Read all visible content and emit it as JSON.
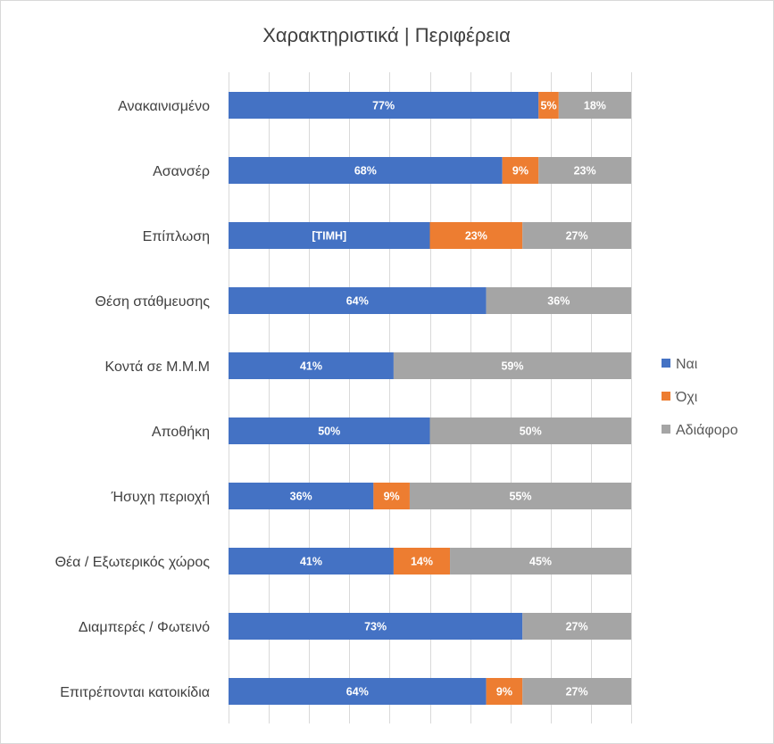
{
  "chart_data": {
    "type": "bar",
    "orientation": "horizontal",
    "stacked": "percent",
    "title": "Χαρακτηριστικά  |  Περιφέρεια",
    "xlabel": "",
    "ylabel": "",
    "xlim": [
      0,
      100
    ],
    "grid": true,
    "legend_position": "right",
    "categories": [
      "Ανακαινισμένο",
      "Ασανσέρ",
      "Επίπλωση",
      "Θέση στάθμευσης",
      "Κοντά σε Μ.Μ.Μ",
      "Αποθήκη",
      "Ήσυχη περιοχή",
      "Θέα / Εξωτερικός χώρος",
      "Διαμπερές / Φωτεινό",
      "Επιτρέπονται κατοικίδια"
    ],
    "series": [
      {
        "name": "Ναι",
        "color": "#4472c4",
        "values": [
          77,
          68,
          50,
          64,
          41,
          50,
          36,
          41,
          73,
          64
        ],
        "labels": [
          "77%",
          "68%",
          "[ΤΙΜΗ]",
          "64%",
          "41%",
          "50%",
          "36%",
          "41%",
          "73%",
          "64%"
        ]
      },
      {
        "name": "Όχι",
        "color": "#ed7d31",
        "values": [
          5,
          9,
          23,
          0,
          0,
          0,
          9,
          14,
          0,
          9
        ],
        "labels": [
          "5%",
          "9%",
          "23%",
          "",
          "",
          "",
          "9%",
          "14%",
          "",
          "9%"
        ]
      },
      {
        "name": "Αδιάφορο",
        "color": "#a5a5a5",
        "values": [
          18,
          23,
          27,
          36,
          59,
          50,
          55,
          45,
          27,
          27
        ],
        "labels": [
          "18%",
          "23%",
          "27%",
          "36%",
          "59%",
          "50%",
          "55%",
          "45%",
          "27%",
          "27%"
        ]
      }
    ]
  }
}
